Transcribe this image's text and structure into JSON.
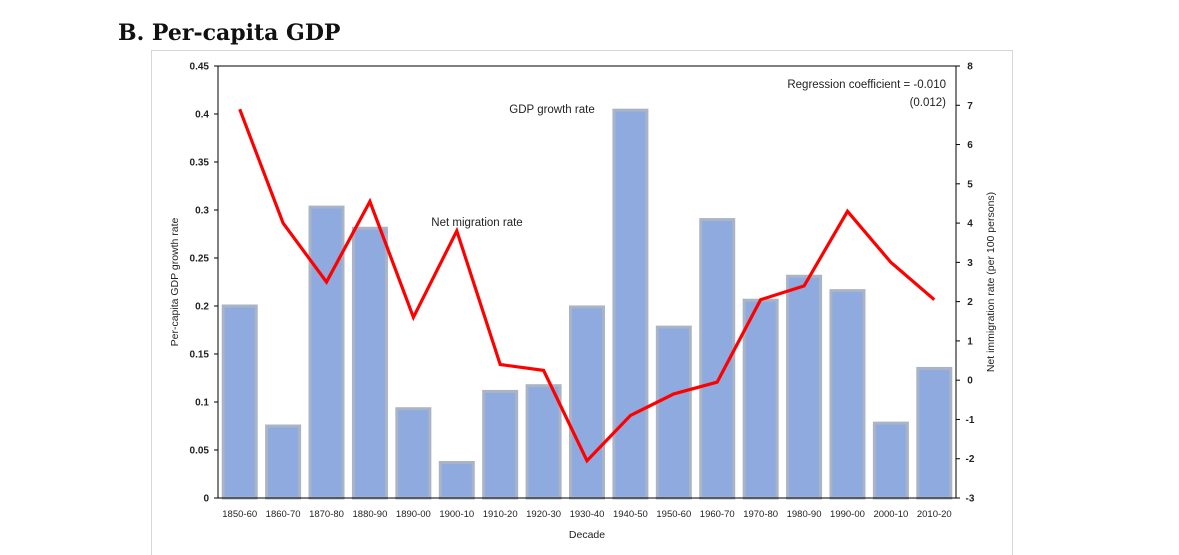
{
  "section_title": "B.   Per-capita GDP",
  "chart_data": {
    "type": "bar",
    "xlabel": "Decade",
    "ylabel": "Per-capita GDP growth rate",
    "y2label": "Net immigration rate (per 100 persons)",
    "ylim": [
      0,
      0.45
    ],
    "y2lim": [
      -3,
      8
    ],
    "yticks": [
      "0",
      "0.05",
      "0.1",
      "0.15",
      "0.2",
      "0.25",
      "0.3",
      "0.35",
      "0.4",
      "0.45"
    ],
    "y2ticks": [
      "-3",
      "-2",
      "-1",
      "0",
      "1",
      "2",
      "3",
      "4",
      "5",
      "6",
      "7",
      "8"
    ],
    "categories": [
      "1850-60",
      "1860-70",
      "1870-80",
      "1880-90",
      "1890-00",
      "1900-10",
      "1910-20",
      "1920-30",
      "1930-40",
      "1940-50",
      "1950-60",
      "1960-70",
      "1970-80",
      "1980-90",
      "1990-00",
      "2000-10",
      "2010-20"
    ],
    "series": [
      {
        "name": "GDP growth rate",
        "kind": "bar",
        "axis": "left",
        "values": [
          0.2,
          0.075,
          0.303,
          0.281,
          0.093,
          0.037,
          0.111,
          0.117,
          0.199,
          0.404,
          0.178,
          0.29,
          0.206,
          0.231,
          0.216,
          0.078,
          0.135
        ]
      },
      {
        "name": "Net migration rate",
        "kind": "line",
        "axis": "right",
        "values": [
          6.9,
          4.0,
          2.5,
          4.55,
          1.6,
          3.8,
          0.4,
          0.25,
          -2.05,
          -0.9,
          -0.35,
          -0.05,
          2.05,
          2.4,
          4.3,
          3.0,
          2.05
        ]
      }
    ],
    "annotations": {
      "regression": "Regression coefficient = -0.010",
      "regression_se": "(0.012)"
    },
    "colors": {
      "bar_fill": "#8eaade",
      "bar_edge": "#a9b4c6",
      "line": "#ff0000"
    }
  }
}
